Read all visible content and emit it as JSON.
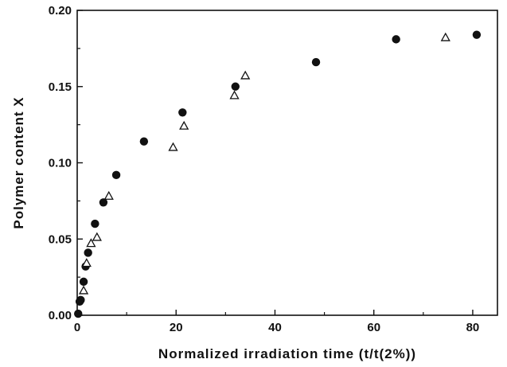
{
  "chart_data": {
    "type": "scatter",
    "title": "",
    "xlabel": "Normalized irradiation time (t/t(2%))",
    "ylabel": "Polymer content X",
    "xlim": [
      0,
      85
    ],
    "ylim": [
      0,
      0.2
    ],
    "x_ticks": [
      "0",
      "20",
      "40",
      "60",
      "80"
    ],
    "y_ticks": [
      "0.00",
      "0.05",
      "0.10",
      "0.15",
      "0.20"
    ],
    "grid": false,
    "legend": "none",
    "series": [
      {
        "marker": "filled-circle",
        "color": "#111111",
        "points": [
          {
            "x": 0.2,
            "y": 0.001
          },
          {
            "x": 0.5,
            "y": 0.009
          },
          {
            "x": 0.7,
            "y": 0.01
          },
          {
            "x": 1.3,
            "y": 0.022
          },
          {
            "x": 1.7,
            "y": 0.032
          },
          {
            "x": 2.2,
            "y": 0.041
          },
          {
            "x": 3.6,
            "y": 0.06
          },
          {
            "x": 5.3,
            "y": 0.074
          },
          {
            "x": 7.9,
            "y": 0.092
          },
          {
            "x": 13.5,
            "y": 0.114
          },
          {
            "x": 21.3,
            "y": 0.133
          },
          {
            "x": 32.0,
            "y": 0.15
          },
          {
            "x": 48.3,
            "y": 0.166
          },
          {
            "x": 64.5,
            "y": 0.181
          },
          {
            "x": 80.8,
            "y": 0.184
          }
        ]
      },
      {
        "marker": "open-triangle",
        "color": "#111111",
        "points": [
          {
            "x": 1.3,
            "y": 0.016
          },
          {
            "x": 1.9,
            "y": 0.034
          },
          {
            "x": 2.8,
            "y": 0.047
          },
          {
            "x": 4.0,
            "y": 0.051
          },
          {
            "x": 6.4,
            "y": 0.078
          },
          {
            "x": 19.4,
            "y": 0.11
          },
          {
            "x": 21.6,
            "y": 0.124
          },
          {
            "x": 31.8,
            "y": 0.144
          },
          {
            "x": 34.0,
            "y": 0.157
          },
          {
            "x": 74.5,
            "y": 0.182
          }
        ]
      }
    ]
  }
}
